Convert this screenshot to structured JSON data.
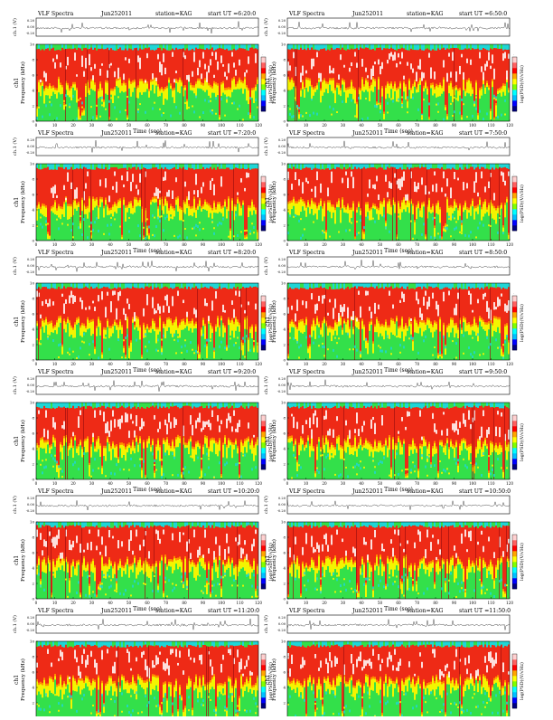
{
  "chart_data": {
    "type": "heatmap",
    "panel_ylabel_top": "ch.1 (V)",
    "panel_ylabel_main": "Frequency (kHz)",
    "channel_label": "ch1",
    "xlabel": "Time (sec)",
    "colorbar_label": "log(PSD)(V/√Hz)",
    "trace_ticks": [
      "0.20",
      "0.00",
      "-0.20"
    ],
    "ytick_labels": [
      "0",
      "2",
      "4",
      "6",
      "8",
      "10"
    ],
    "xtick_labels": [
      "0",
      "10",
      "20",
      "30",
      "40",
      "50",
      "60",
      "70",
      "80",
      "90",
      "100",
      "110",
      "120"
    ],
    "xlim": [
      0,
      120
    ],
    "ylim_khz": [
      0,
      10
    ],
    "colorbar_palette": [
      "#000080",
      "#0000ff",
      "#00bfff",
      "#00ffff",
      "#7fff00",
      "#ffff00",
      "#ffa500",
      "#ff0000",
      "#ff6060",
      "#ffd0d0"
    ],
    "spectrum_palette": {
      "red": "#ee2a16",
      "orange": "#ff8c00",
      "yellow": "#f4f400",
      "green": "#33e04a",
      "cyan": "#1fd6d6",
      "white": "#ffffff"
    },
    "panels": [
      {
        "title_left": "VLF Spectra",
        "date": "Jun252011",
        "station": "station=KAG",
        "start": "start UT =6:20:0"
      },
      {
        "title_left": "VLF Spectra",
        "date": "Jun252011",
        "station": "station=KAG",
        "start": "start UT =6:50:0"
      },
      {
        "title_left": "VLF Spectra",
        "date": "Jun252011",
        "station": "station=KAG",
        "start": "start UT =7:20:0"
      },
      {
        "title_left": "VLF Spectra",
        "date": "Jun252011",
        "station": "station=KAG",
        "start": "start UT =7:50:0"
      },
      {
        "title_left": "VLF Spectra",
        "date": "Jun252011",
        "station": "station=KAG",
        "start": "start UT =8:20:0"
      },
      {
        "title_left": "VLF Spectra",
        "date": "Jun252011",
        "station": "station=KAG",
        "start": "start UT =8:50:0"
      },
      {
        "title_left": "VLF Spectra",
        "date": "Jun252011",
        "station": "station=KAG",
        "start": "start UT =9:20:0"
      },
      {
        "title_left": "VLF Spectra",
        "date": "Jun252011",
        "station": "station=KAG",
        "start": "start UT =9:50:0"
      },
      {
        "title_left": "VLF Spectra",
        "date": "Jun252011",
        "station": "station=KAG",
        "start": "start UT =10:20:0"
      },
      {
        "title_left": "VLF Spectra",
        "date": "Jun252011",
        "station": "station=KAG",
        "start": "start UT =10:50:0"
      },
      {
        "title_left": "VLF Spectra",
        "date": "Jun252011",
        "station": "station=KAG",
        "start": "start UT =11:20:0"
      },
      {
        "title_left": "VLF Spectra",
        "date": "Jun252011",
        "station": "station=KAG",
        "start": "start UT =11:50:0"
      }
    ]
  }
}
